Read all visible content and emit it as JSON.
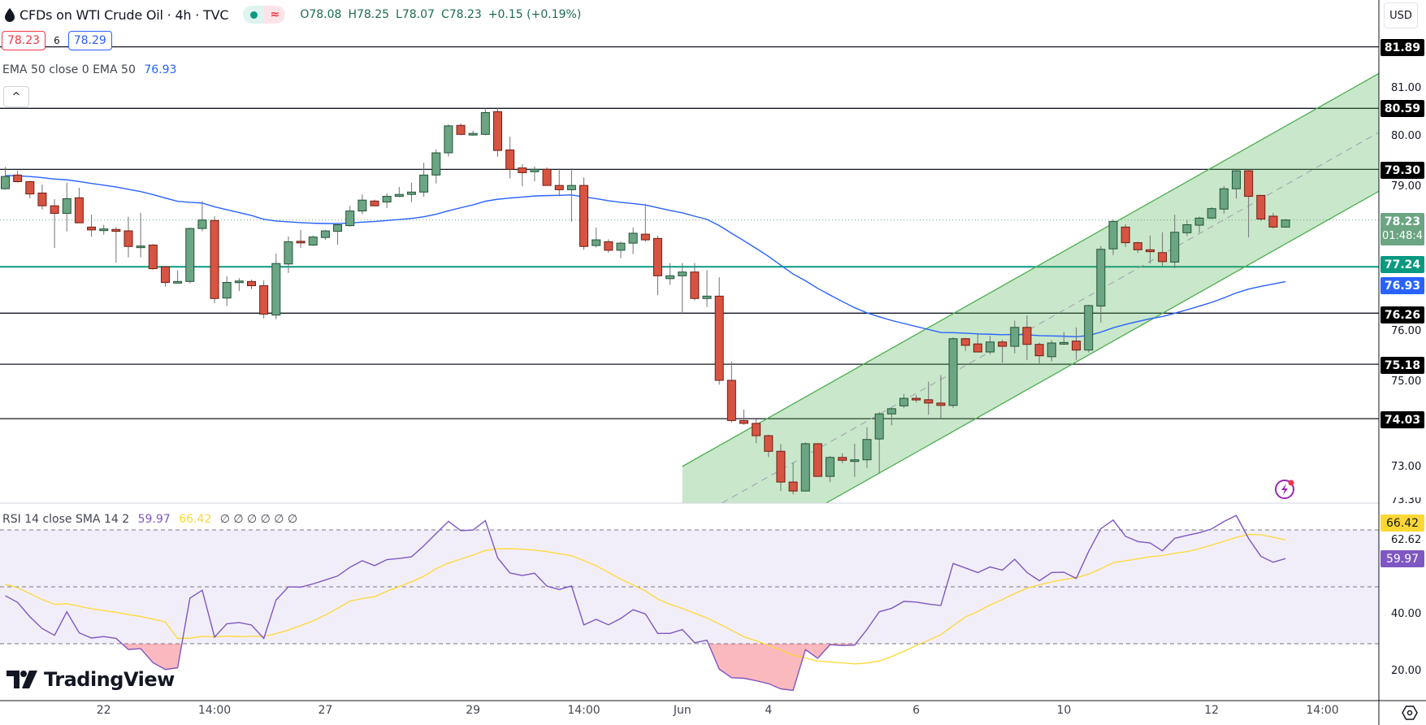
{
  "header": {
    "title": "CFDs on WTI Crude Oil · 4h · TVC",
    "market_status_icon": "green-dot",
    "data_icon": "≈",
    "ohlc": {
      "open": "O78.08",
      "high": "H78.25",
      "low": "L78.07",
      "close": "C78.23",
      "change": "+0.15 (+0.19%)"
    },
    "sell_price": "78.23",
    "spread": "6",
    "buy_price": "78.29"
  },
  "ema_legend": {
    "label": "EMA 50 close 0 EMA 50",
    "value": "76.93"
  },
  "rsi_legend": {
    "label": "RSI 14 close SMA 14 2",
    "rsi_value": "59.97",
    "sma_value": "66.42",
    "empty_values": "∅ ∅ ∅ ∅ ∅ ∅"
  },
  "currency": "USD",
  "collapse_icon": "^",
  "logo_text": "TradingView",
  "colors": {
    "up": "#6ba583",
    "down": "#d75442",
    "ema": "#2962ff",
    "support": "#089981",
    "rsi": "#7e57c2",
    "rsi_sma": "#fdd835",
    "channel": "#4caf50"
  },
  "price_axis": [
    "81.00",
    "80.00",
    "79.00",
    "76.00",
    "75.00",
    "73.00"
  ],
  "price_axis_values": [
    81,
    80,
    79,
    76,
    75,
    73
  ],
  "badges": {
    "l1": "81.89",
    "l2": "80.59",
    "l3": "79.30",
    "last": "78.23",
    "countdown": "01:48:4",
    "support": "77.24",
    "ema": "76.93",
    "l4": "76.26",
    "l5": "75.18",
    "l6": "74.03"
  },
  "rsi_axis": {
    "clipped": "73.30",
    "sma": "66.42",
    "mid": "62.62",
    "rsi": "59.97",
    "forty": "40.00",
    "twenty": "20.00"
  },
  "time_axis": [
    {
      "label": "22",
      "index": 8
    },
    {
      "label": "14:00",
      "index": 17
    },
    {
      "label": "27",
      "index": 26
    },
    {
      "label": "29",
      "index": 38
    },
    {
      "label": "14:00",
      "index": 47
    },
    {
      "label": "Jun",
      "index": 55
    },
    {
      "label": "4",
      "index": 62
    },
    {
      "label": "6",
      "index": 74
    },
    {
      "label": "10",
      "index": 86
    },
    {
      "label": "12",
      "index": 98
    },
    {
      "label": "14:00",
      "index": 107
    }
  ],
  "chart_data": {
    "type": "candlestick",
    "symbol": "CFDs on WTI Crude Oil",
    "interval": "4h",
    "horizontal_levels": [
      81.89,
      80.59,
      79.3,
      76.26,
      75.18,
      74.03
    ],
    "support_level": 77.24,
    "last_price": 78.23,
    "ylim": [
      72.3,
      82.5
    ],
    "channel": {
      "start_index": 55,
      "end_index": 111.6,
      "upper_start": 73.02,
      "upper_end": 81.33,
      "lower_start": 70.53,
      "lower_end": 78.84
    },
    "rsi": {
      "period": 14,
      "sma_period": 14,
      "overbought": 70,
      "middle": 50,
      "oversold": 30,
      "ylim": [
        10,
        78
      ]
    },
    "ema_period": 50,
    "ohlc": [
      [
        78.89,
        79.35,
        78.87,
        79.15
      ],
      [
        79.18,
        79.27,
        79.02,
        79.04
      ],
      [
        79.04,
        79.06,
        78.69,
        78.78
      ],
      [
        78.8,
        78.98,
        78.45,
        78.53
      ],
      [
        78.53,
        78.67,
        77.64,
        78.37
      ],
      [
        78.37,
        79.02,
        77.99,
        78.68
      ],
      [
        78.7,
        78.91,
        78.17,
        78.17
      ],
      [
        78.08,
        78.34,
        77.88,
        78.02
      ],
      [
        78.03,
        78.13,
        77.92,
        78.04
      ],
      [
        78.03,
        78.08,
        77.33,
        77.99
      ],
      [
        78.0,
        78.3,
        77.44,
        77.67
      ],
      [
        77.66,
        78.38,
        77.44,
        77.68
      ],
      [
        77.7,
        77.72,
        77.18,
        77.2
      ],
      [
        77.24,
        77.25,
        76.82,
        76.91
      ],
      [
        76.91,
        77.16,
        76.89,
        76.93
      ],
      [
        76.93,
        78.07,
        76.89,
        78.05
      ],
      [
        78.05,
        78.63,
        77.99,
        78.23
      ],
      [
        78.22,
        78.31,
        76.47,
        76.57
      ],
      [
        76.58,
        77.04,
        76.41,
        76.91
      ],
      [
        76.92,
        77.0,
        76.73,
        76.94
      ],
      [
        76.93,
        76.97,
        76.77,
        76.84
      ],
      [
        76.84,
        76.95,
        76.15,
        76.24
      ],
      [
        76.22,
        77.52,
        76.13,
        77.31
      ],
      [
        77.3,
        77.88,
        77.11,
        77.77
      ],
      [
        77.78,
        78.02,
        77.64,
        77.76
      ],
      [
        77.7,
        77.9,
        77.68,
        77.87
      ],
      [
        77.86,
        78.02,
        77.81,
        78.0
      ],
      [
        77.99,
        78.15,
        77.71,
        78.13
      ],
      [
        78.11,
        78.53,
        78.09,
        78.42
      ],
      [
        78.42,
        78.77,
        78.35,
        78.65
      ],
      [
        78.63,
        78.66,
        78.52,
        78.53
      ],
      [
        78.61,
        78.79,
        78.48,
        78.73
      ],
      [
        78.73,
        78.93,
        78.71,
        78.77
      ],
      [
        78.77,
        79.02,
        78.61,
        78.82
      ],
      [
        78.82,
        79.44,
        78.72,
        79.18
      ],
      [
        79.18,
        79.72,
        79.0,
        79.65
      ],
      [
        79.65,
        80.25,
        79.57,
        80.22
      ],
      [
        80.23,
        80.27,
        80.02,
        80.04
      ],
      [
        80.05,
        80.12,
        80.01,
        80.06
      ],
      [
        80.04,
        80.59,
        80.02,
        80.5
      ],
      [
        80.52,
        80.59,
        79.57,
        79.7
      ],
      [
        79.71,
        79.99,
        79.11,
        79.3
      ],
      [
        79.33,
        79.41,
        78.94,
        79.23
      ],
      [
        79.25,
        79.36,
        79.05,
        79.3
      ],
      [
        79.3,
        79.34,
        78.96,
        78.96
      ],
      [
        78.96,
        79.32,
        78.73,
        78.87
      ],
      [
        78.87,
        79.32,
        78.19,
        78.96
      ],
      [
        78.96,
        79.13,
        77.6,
        77.67
      ],
      [
        77.69,
        78.07,
        77.65,
        77.81
      ],
      [
        77.77,
        77.82,
        77.54,
        77.59
      ],
      [
        77.59,
        77.77,
        77.42,
        77.74
      ],
      [
        77.74,
        78.07,
        77.51,
        77.95
      ],
      [
        77.93,
        78.57,
        77.77,
        77.81
      ],
      [
        77.84,
        77.9,
        76.64,
        77.05
      ],
      [
        76.99,
        77.32,
        76.86,
        77.05
      ],
      [
        77.05,
        77.32,
        76.24,
        77.13
      ],
      [
        77.13,
        77.32,
        76.53,
        76.57
      ],
      [
        76.57,
        77.17,
        76.39,
        76.62
      ],
      [
        76.62,
        77.02,
        74.75,
        74.84
      ],
      [
        74.84,
        75.24,
        73.95,
        73.99
      ],
      [
        73.99,
        74.22,
        73.9,
        73.93
      ],
      [
        73.93,
        74.02,
        73.51,
        73.67
      ],
      [
        73.67,
        73.69,
        73.22,
        73.34
      ],
      [
        73.34,
        73.49,
        72.5,
        72.69
      ],
      [
        72.69,
        73.1,
        72.43,
        72.5
      ],
      [
        72.5,
        73.53,
        72.5,
        73.5
      ],
      [
        73.5,
        73.52,
        72.8,
        72.81
      ],
      [
        72.81,
        73.24,
        72.69,
        73.21
      ],
      [
        73.21,
        73.3,
        73.09,
        73.15
      ],
      [
        73.14,
        73.5,
        72.8,
        73.16
      ],
      [
        73.16,
        73.85,
        72.99,
        73.59
      ],
      [
        73.6,
        74.17,
        72.87,
        74.13
      ],
      [
        74.13,
        74.26,
        73.89,
        74.24
      ],
      [
        74.3,
        74.55,
        74.25,
        74.46
      ],
      [
        74.46,
        74.53,
        74.37,
        74.43
      ],
      [
        74.43,
        74.81,
        74.11,
        74.36
      ],
      [
        74.36,
        74.95,
        74.03,
        74.31
      ],
      [
        74.31,
        75.75,
        74.26,
        75.72
      ],
      [
        75.72,
        75.74,
        75.46,
        75.58
      ],
      [
        75.61,
        75.84,
        75.43,
        75.44
      ],
      [
        75.44,
        75.78,
        75.39,
        75.65
      ],
      [
        75.65,
        75.7,
        75.21,
        75.56
      ],
      [
        75.56,
        76.1,
        75.41,
        75.96
      ],
      [
        75.96,
        76.21,
        75.27,
        75.6
      ],
      [
        75.6,
        75.64,
        75.18,
        75.36
      ],
      [
        75.34,
        75.69,
        75.24,
        75.63
      ],
      [
        75.63,
        75.86,
        75.59,
        75.64
      ],
      [
        75.67,
        75.96,
        75.27,
        75.48
      ],
      [
        75.48,
        76.44,
        75.43,
        76.42
      ],
      [
        76.41,
        77.68,
        76.06,
        77.61
      ],
      [
        77.62,
        78.24,
        77.49,
        78.2
      ],
      [
        78.08,
        78.14,
        77.66,
        77.75
      ],
      [
        77.75,
        77.77,
        77.53,
        77.6
      ],
      [
        77.6,
        77.9,
        77.31,
        77.56
      ],
      [
        77.54,
        77.97,
        77.26,
        77.35
      ],
      [
        77.34,
        78.34,
        77.21,
        77.97
      ],
      [
        77.96,
        78.23,
        77.89,
        78.13
      ],
      [
        78.12,
        78.3,
        77.96,
        78.27
      ],
      [
        78.27,
        78.5,
        78.25,
        78.47
      ],
      [
        78.46,
        78.95,
        78.36,
        78.89
      ],
      [
        78.89,
        79.3,
        78.68,
        79.27
      ],
      [
        79.27,
        79.3,
        77.86,
        78.73
      ],
      [
        78.75,
        78.75,
        78.21,
        78.25
      ],
      [
        78.31,
        78.38,
        78.05,
        78.08
      ],
      [
        78.08,
        78.25,
        78.07,
        78.23
      ]
    ]
  }
}
